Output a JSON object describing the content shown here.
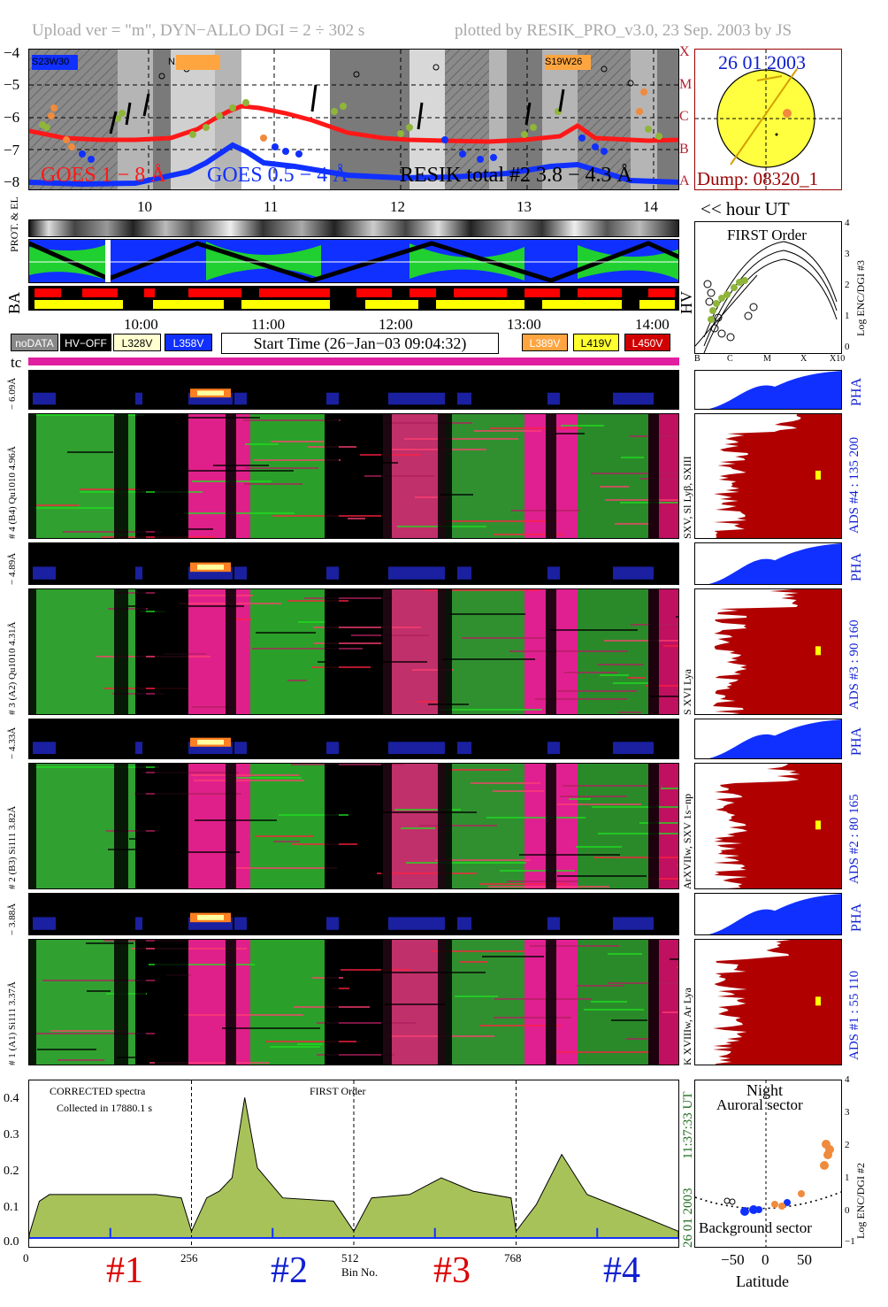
{
  "header": {
    "left": "Upload ver = \"m\", DYN−ALLO DGI =   2 ÷ 302 s",
    "right": "plotted by RESIK_PRO_v3.0, 23 Sep. 2003 by JS"
  },
  "goes": {
    "y_ticks": [
      "−4",
      "−5",
      "−6",
      "−7",
      "−8"
    ],
    "class_labels": [
      "X",
      "M",
      "C",
      "B",
      "A"
    ],
    "legend_goes18": "GOES 1 − 8 Å",
    "legend_goes054": "GOES 0.5 − 4 Å",
    "legend_resik": "RESIK total #2  3.8 − 4.3 Å",
    "regions": [
      "S23W30",
      "N13W36",
      "S19W26"
    ],
    "hour_ticks": [
      "10",
      "11",
      "12",
      "13",
      "14"
    ],
    "hour_label": "<< hour UT"
  },
  "sun": {
    "date": "26 01 2003",
    "dump": "Dump: 08320_1"
  },
  "orbit": {
    "prot_el_label": "PROT. & EL",
    "ba_label": "BA",
    "hv_label": "HV",
    "time_ticks": [
      "10:00",
      "11:00",
      "12:00",
      "13:00",
      "14:00"
    ]
  },
  "legend": {
    "nodata": "noDATA",
    "hvoff": "HV−OFF",
    "v328": "L328V",
    "v358": "L358V",
    "start_time": "Start Time (26−Jan−03 09:04:32)",
    "v389": "L389V",
    "v419": "L419V",
    "v450": "L450V",
    "tc": "tc"
  },
  "first_order": {
    "title": "FIRST Order",
    "ylabel": "Log ENC/DGI #3",
    "y_ticks": [
      "4",
      "3",
      "2",
      "1",
      "0"
    ],
    "x_ticks": [
      "B",
      "C",
      "M",
      "X",
      "X10"
    ]
  },
  "detectors": [
    {
      "pha_label": "− 6.09Å",
      "main_label": "# 4 (B4) Qu1010 4.96Å",
      "line_label": "SXV, Sl Lyβ, SXIII",
      "ads_label": "ADS #4 :   135 200"
    },
    {
      "pha_label": "− 4.89Å",
      "main_label": "# 3 (A2) Qu1010  4.31Å",
      "line_label": "S XVI Lya",
      "ads_label": "ADS #3 :    90 160"
    },
    {
      "pha_label": "− 4.33Å",
      "main_label": "# 2 (B3) Si111  3.82Å",
      "line_label": "ArXVIIw, SXV 1s−np",
      "ads_label": "ADS #2 :    80 165"
    },
    {
      "pha_label": "− 3.88Å",
      "main_label": "# 1 (A1) Si111  3.37Å",
      "line_label": "K XVIIIw, Ar Lya",
      "ads_label": "ADS #1 :    55 110"
    }
  ],
  "pha_label": "PHA",
  "spectrum": {
    "title_left": "CORRECTED spectra",
    "collected": "Collected in 17880.1 s",
    "order": "FIRST Order",
    "y_ticks": [
      "0.4",
      "0.3",
      "0.2",
      "0.1",
      "0.0"
    ],
    "x_ticks": [
      "0",
      "256",
      "512",
      "768"
    ],
    "xlabel": "Bin No.",
    "date": "26 01 2003",
    "time": "11:37:33 UT",
    "channels": [
      "#1",
      "#2",
      "#3",
      "#4"
    ]
  },
  "latitude": {
    "night": "Night",
    "auroral": "Auroral sector",
    "background": "Background sector",
    "ylabel": "Log ENC/DGI #2",
    "xlabel": "Latitude",
    "x_ticks": [
      "−50",
      "0",
      "50"
    ],
    "y_ticks": [
      "4",
      "3",
      "2",
      "1",
      "0",
      "−1"
    ]
  },
  "chart_data": {
    "type": "area",
    "title": "CORRECTED spectra",
    "xlabel": "Bin No.",
    "ylabel": "",
    "xlim": [
      0,
      1024
    ],
    "ylim": [
      0,
      0.45
    ],
    "x": [
      0,
      16,
      32,
      64,
      128,
      200,
      240,
      256,
      280,
      300,
      320,
      340,
      360,
      400,
      480,
      512,
      540,
      600,
      650,
      700,
      760,
      768,
      800,
      840,
      880,
      960,
      1024
    ],
    "values": [
      0.01,
      0.11,
      0.13,
      0.13,
      0.13,
      0.13,
      0.12,
      0.02,
      0.12,
      0.14,
      0.18,
      0.42,
      0.21,
      0.12,
      0.11,
      0.02,
      0.12,
      0.13,
      0.18,
      0.14,
      0.12,
      0.02,
      0.1,
      0.25,
      0.13,
      0.07,
      0.02
    ]
  }
}
